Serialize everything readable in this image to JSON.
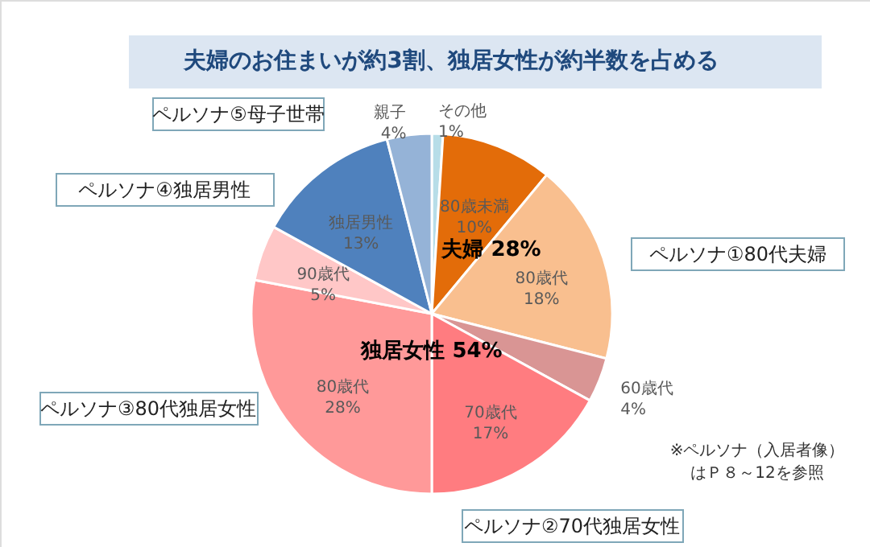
{
  "chart_data": {
    "type": "pie",
    "title": "夫婦のお住まいが約3割、独居女性が約半数を占める",
    "categories": [
      "その他",
      "80歳未満",
      "80歳代",
      "60歳代",
      "70歳代",
      "80歳代",
      "90歳代",
      "独居男性",
      "親子"
    ],
    "values": [
      1,
      10,
      18,
      4,
      17,
      28,
      5,
      13,
      4
    ],
    "value_labels": [
      "1%",
      "10%",
      "18%",
      "4%",
      "17%",
      "28%",
      "5%",
      "13%",
      "4%"
    ],
    "colors": [
      "#b7dde8",
      "#e36c09",
      "#f9bf8f",
      "#d99594",
      "#ff7c80",
      "#ff9999",
      "#ffc7c7",
      "#4f81bd",
      "#95b3d7"
    ],
    "annotations": [
      "夫婦  28%",
      "独居女性  54%",
      "ペルソナ①80代夫婦",
      "ペルソナ②70代独居女性",
      "ペルソナ③80代独居女性",
      "ペルソナ④独居男性",
      "ペルソナ⑤母子世帯",
      "※ペルソナ（入居者像）",
      "はＰ８～12を参照"
    ]
  }
}
